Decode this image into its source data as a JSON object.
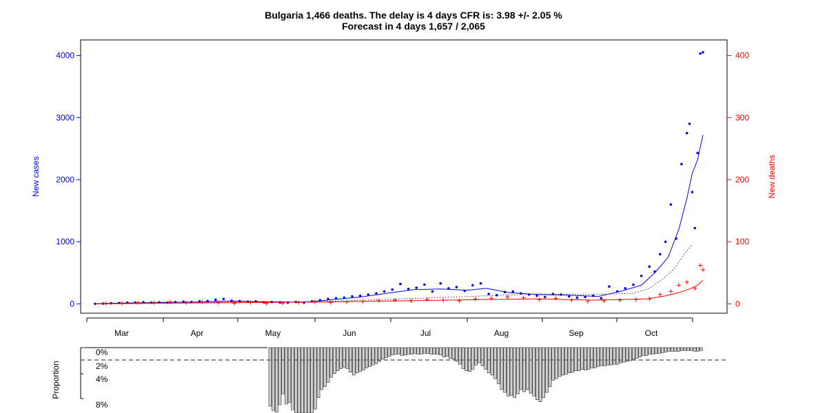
{
  "title_line1": "Bulgaria 1,466 deaths. The delay is 4 days CFR is: 3.98 +/- 2.05 %",
  "title_line2": "Forecast in 4 days 1,657 / 2,065",
  "colors": {
    "cases": "#0000ff",
    "deaths": "#ff0000",
    "axis": "#000000",
    "ratio": "#666666",
    "bars": "#cfcfcf"
  },
  "chart_data": [
    {
      "type": "scatter",
      "title": "Bulgaria 1,466 deaths. The delay is 4 days CFR is: 3.98 +/- 2.05 %",
      "subtitle": "Forecast in 4 days 1,657 / 2,065",
      "x_start": "2020-03-08",
      "x_end": "2020-10-21",
      "x_ticks": [
        "Mar",
        "Apr",
        "May",
        "Jun",
        "Jul",
        "Aug",
        "Sep",
        "Oct"
      ],
      "ylabel": "New cases",
      "ylim": [
        -150,
        4250
      ],
      "yticks": [
        0,
        1000,
        2000,
        3000,
        4000
      ],
      "y2label": "New deaths",
      "y2lim": [
        -15,
        425
      ],
      "y2ticks": [
        0,
        100,
        200,
        300,
        400
      ],
      "grid": false,
      "series": [
        {
          "name": "New cases",
          "axis": "left",
          "style": "points",
          "values": [
            [
              "2020-03-08",
              2
            ],
            [
              "2020-03-11",
              5
            ],
            [
              "2020-03-14",
              10
            ],
            [
              "2020-03-17",
              15
            ],
            [
              "2020-03-20",
              20
            ],
            [
              "2020-03-23",
              20
            ],
            [
              "2020-03-26",
              25
            ],
            [
              "2020-03-29",
              20
            ],
            [
              "2020-04-01",
              25
            ],
            [
              "2020-04-04",
              20
            ],
            [
              "2020-04-07",
              30
            ],
            [
              "2020-04-10",
              35
            ],
            [
              "2020-04-13",
              30
            ],
            [
              "2020-04-16",
              40
            ],
            [
              "2020-04-19",
              45
            ],
            [
              "2020-04-22",
              65
            ],
            [
              "2020-04-25",
              80
            ],
            [
              "2020-04-28",
              50
            ],
            [
              "2020-05-01",
              45
            ],
            [
              "2020-05-04",
              35
            ],
            [
              "2020-05-07",
              40
            ],
            [
              "2020-05-10",
              25
            ],
            [
              "2020-05-13",
              30
            ],
            [
              "2020-05-16",
              25
            ],
            [
              "2020-05-19",
              20
            ],
            [
              "2020-05-22",
              30
            ],
            [
              "2020-05-25",
              20
            ],
            [
              "2020-05-28",
              40
            ],
            [
              "2020-05-31",
              60
            ],
            [
              "2020-06-03",
              80
            ],
            [
              "2020-06-06",
              90
            ],
            [
              "2020-06-09",
              100
            ],
            [
              "2020-06-12",
              120
            ],
            [
              "2020-06-15",
              130
            ],
            [
              "2020-06-18",
              150
            ],
            [
              "2020-06-21",
              170
            ],
            [
              "2020-06-24",
              200
            ],
            [
              "2020-06-27",
              230
            ],
            [
              "2020-06-30",
              320
            ],
            [
              "2020-07-03",
              240
            ],
            [
              "2020-07-06",
              260
            ],
            [
              "2020-07-09",
              310
            ],
            [
              "2020-07-12",
              200
            ],
            [
              "2020-07-15",
              330
            ],
            [
              "2020-07-18",
              250
            ],
            [
              "2020-07-21",
              270
            ],
            [
              "2020-07-24",
              210
            ],
            [
              "2020-07-27",
              300
            ],
            [
              "2020-07-30",
              330
            ],
            [
              "2020-08-02",
              160
            ],
            [
              "2020-08-05",
              140
            ],
            [
              "2020-08-08",
              190
            ],
            [
              "2020-08-11",
              200
            ],
            [
              "2020-08-14",
              170
            ],
            [
              "2020-08-17",
              150
            ],
            [
              "2020-08-20",
              130
            ],
            [
              "2020-08-23",
              110
            ],
            [
              "2020-08-26",
              160
            ],
            [
              "2020-08-29",
              150
            ],
            [
              "2020-09-01",
              120
            ],
            [
              "2020-09-04",
              100
            ],
            [
              "2020-09-07",
              110
            ],
            [
              "2020-09-10",
              130
            ],
            [
              "2020-09-13",
              90
            ],
            [
              "2020-09-16",
              280
            ],
            [
              "2020-09-19",
              200
            ],
            [
              "2020-09-22",
              250
            ],
            [
              "2020-09-25",
              310
            ],
            [
              "2020-09-28",
              450
            ],
            [
              "2020-10-01",
              600
            ],
            [
              "2020-10-03",
              520
            ],
            [
              "2020-10-05",
              800
            ],
            [
              "2020-10-07",
              1000
            ],
            [
              "2020-10-09",
              1600
            ],
            [
              "2020-10-11",
              1050
            ],
            [
              "2020-10-13",
              2250
            ],
            [
              "2020-10-15",
              2750
            ],
            [
              "2020-10-16",
              2900
            ],
            [
              "2020-10-17",
              1800
            ],
            [
              "2020-10-18",
              1220
            ],
            [
              "2020-10-19",
              2430
            ],
            [
              "2020-10-20",
              4030
            ],
            [
              "2020-10-21",
              4050
            ]
          ]
        },
        {
          "name": "New cases (smoothed)",
          "axis": "left",
          "style": "line",
          "values": [
            [
              "2020-03-08",
              3
            ],
            [
              "2020-03-20",
              15
            ],
            [
              "2020-04-01",
              20
            ],
            [
              "2020-04-15",
              30
            ],
            [
              "2020-04-28",
              45
            ],
            [
              "2020-05-10",
              35
            ],
            [
              "2020-05-25",
              25
            ],
            [
              "2020-06-05",
              70
            ],
            [
              "2020-06-15",
              110
            ],
            [
              "2020-06-25",
              170
            ],
            [
              "2020-07-05",
              230
            ],
            [
              "2020-07-15",
              240
            ],
            [
              "2020-07-25",
              220
            ],
            [
              "2020-08-01",
              250
            ],
            [
              "2020-08-10",
              180
            ],
            [
              "2020-08-20",
              150
            ],
            [
              "2020-09-01",
              140
            ],
            [
              "2020-09-12",
              120
            ],
            [
              "2020-09-20",
              200
            ],
            [
              "2020-09-28",
              300
            ],
            [
              "2020-10-03",
              500
            ],
            [
              "2020-10-08",
              750
            ],
            [
              "2020-10-12",
              1200
            ],
            [
              "2020-10-15",
              1700
            ],
            [
              "2020-10-17",
              2100
            ],
            [
              "2020-10-19",
              2320
            ],
            [
              "2020-10-21",
              2720
            ]
          ]
        },
        {
          "name": "Forecast (dotted)",
          "axis": "left",
          "style": "dotted",
          "values": [
            [
              "2020-03-08",
              5
            ],
            [
              "2020-04-01",
              25
            ],
            [
              "2020-05-01",
              30
            ],
            [
              "2020-06-01",
              40
            ],
            [
              "2020-07-01",
              80
            ],
            [
              "2020-08-01",
              130
            ],
            [
              "2020-08-20",
              160
            ],
            [
              "2020-09-10",
              150
            ],
            [
              "2020-09-25",
              170
            ],
            [
              "2020-10-01",
              250
            ],
            [
              "2020-10-06",
              400
            ],
            [
              "2020-10-10",
              550
            ],
            [
              "2020-10-14",
              800
            ],
            [
              "2020-10-17",
              960
            ]
          ]
        },
        {
          "name": "New deaths",
          "axis": "right",
          "style": "plus",
          "values": [
            [
              "2020-03-12",
              1
            ],
            [
              "2020-03-18",
              1
            ],
            [
              "2020-03-24",
              2
            ],
            [
              "2020-03-30",
              2
            ],
            [
              "2020-04-05",
              3
            ],
            [
              "2020-04-11",
              2
            ],
            [
              "2020-04-17",
              3
            ],
            [
              "2020-04-23",
              2
            ],
            [
              "2020-04-29",
              1
            ],
            [
              "2020-05-05",
              2
            ],
            [
              "2020-05-11",
              1
            ],
            [
              "2020-05-17",
              1
            ],
            [
              "2020-05-23",
              2
            ],
            [
              "2020-05-29",
              3
            ],
            [
              "2020-06-04",
              2
            ],
            [
              "2020-06-10",
              3
            ],
            [
              "2020-06-16",
              4
            ],
            [
              "2020-06-22",
              5
            ],
            [
              "2020-06-28",
              6
            ],
            [
              "2020-07-04",
              5
            ],
            [
              "2020-07-10",
              7
            ],
            [
              "2020-07-16",
              6
            ],
            [
              "2020-07-22",
              5
            ],
            [
              "2020-07-28",
              8
            ],
            [
              "2020-08-03",
              9
            ],
            [
              "2020-08-09",
              11
            ],
            [
              "2020-08-15",
              10
            ],
            [
              "2020-08-21",
              7
            ],
            [
              "2020-08-27",
              9
            ],
            [
              "2020-09-02",
              6
            ],
            [
              "2020-09-08",
              4
            ],
            [
              "2020-09-14",
              5
            ],
            [
              "2020-09-20",
              6
            ],
            [
              "2020-09-26",
              7
            ],
            [
              "2020-10-01",
              8
            ],
            [
              "2020-10-05",
              15
            ],
            [
              "2020-10-09",
              20
            ],
            [
              "2020-10-12",
              30
            ],
            [
              "2020-10-15",
              35
            ],
            [
              "2020-10-18",
              25
            ],
            [
              "2020-10-20",
              62
            ],
            [
              "2020-10-21",
              55
            ]
          ]
        },
        {
          "name": "New deaths (smoothed)",
          "axis": "right",
          "style": "line",
          "values": [
            [
              "2020-03-08",
              0
            ],
            [
              "2020-04-01",
              1
            ],
            [
              "2020-05-01",
              2
            ],
            [
              "2020-06-01",
              3
            ],
            [
              "2020-07-01",
              5
            ],
            [
              "2020-08-01",
              7
            ],
            [
              "2020-08-20",
              8
            ],
            [
              "2020-09-10",
              6
            ],
            [
              "2020-09-30",
              8
            ],
            [
              "2020-10-06",
              12
            ],
            [
              "2020-10-12",
              18
            ],
            [
              "2020-10-16",
              24
            ],
            [
              "2020-10-19",
              30
            ],
            [
              "2020-10-21",
              38
            ]
          ]
        }
      ]
    },
    {
      "type": "bar",
      "ylabel": "Proportion",
      "y_ticks": [
        "0%",
        "2%",
        "4%",
        "8%"
      ],
      "reference_line": "2%",
      "x_start": "2020-05-01",
      "x_end": "2020-10-21",
      "values": [
        8.1,
        8.7,
        8.9,
        7.9,
        6.4,
        7.8,
        7.6,
        8.6,
        9.6,
        9.5,
        10.2,
        9.8,
        9.4,
        9.2,
        8.5,
        6.9,
        5.8,
        5.4,
        4.8,
        4.1,
        3.6,
        3.2,
        2.9,
        2.7,
        2.9,
        3.4,
        3.8,
        3.5,
        3.3,
        3.1,
        2.8,
        2.6,
        2.4,
        2.2,
        1.9,
        1.6,
        1.4,
        1.2,
        1.0,
        0.9,
        0.9,
        1.1,
        1.0,
        0.9,
        0.9,
        0.8,
        0.9,
        0.9,
        0.8,
        0.8,
        0.9,
        0.9,
        0.9,
        1.0,
        1.3,
        1.2,
        1.5,
        1.6,
        1.9,
        2.3,
        2.9,
        3.2,
        3.3,
        3.0,
        2.4,
        2.1,
        2.5,
        3.0,
        3.5,
        3.8,
        4.3,
        5.0,
        5.8,
        6.2,
        6.7,
        6.6,
        6.9,
        6.4,
        5.8,
        6.1,
        5.8,
        6.3,
        6.7,
        7.2,
        7.5,
        6.9,
        6.2,
        5.4,
        4.5,
        4.3,
        4.0,
        3.8,
        3.7,
        3.5,
        3.4,
        3.2,
        3.2,
        3.0,
        3.1,
        3.0,
        2.8,
        2.8,
        2.6,
        2.5,
        2.5,
        2.4,
        2.4,
        2.3,
        2.3,
        2.1,
        2.0,
        1.9,
        1.8,
        1.6,
        1.5,
        1.3,
        1.1,
        1.1,
        0.9,
        0.9,
        0.8,
        0.8,
        0.7,
        0.6,
        0.5,
        0.5,
        0.5,
        0.5,
        0.4,
        0.4,
        0.4,
        0.4,
        0.5,
        0.5,
        0.4
      ]
    }
  ]
}
